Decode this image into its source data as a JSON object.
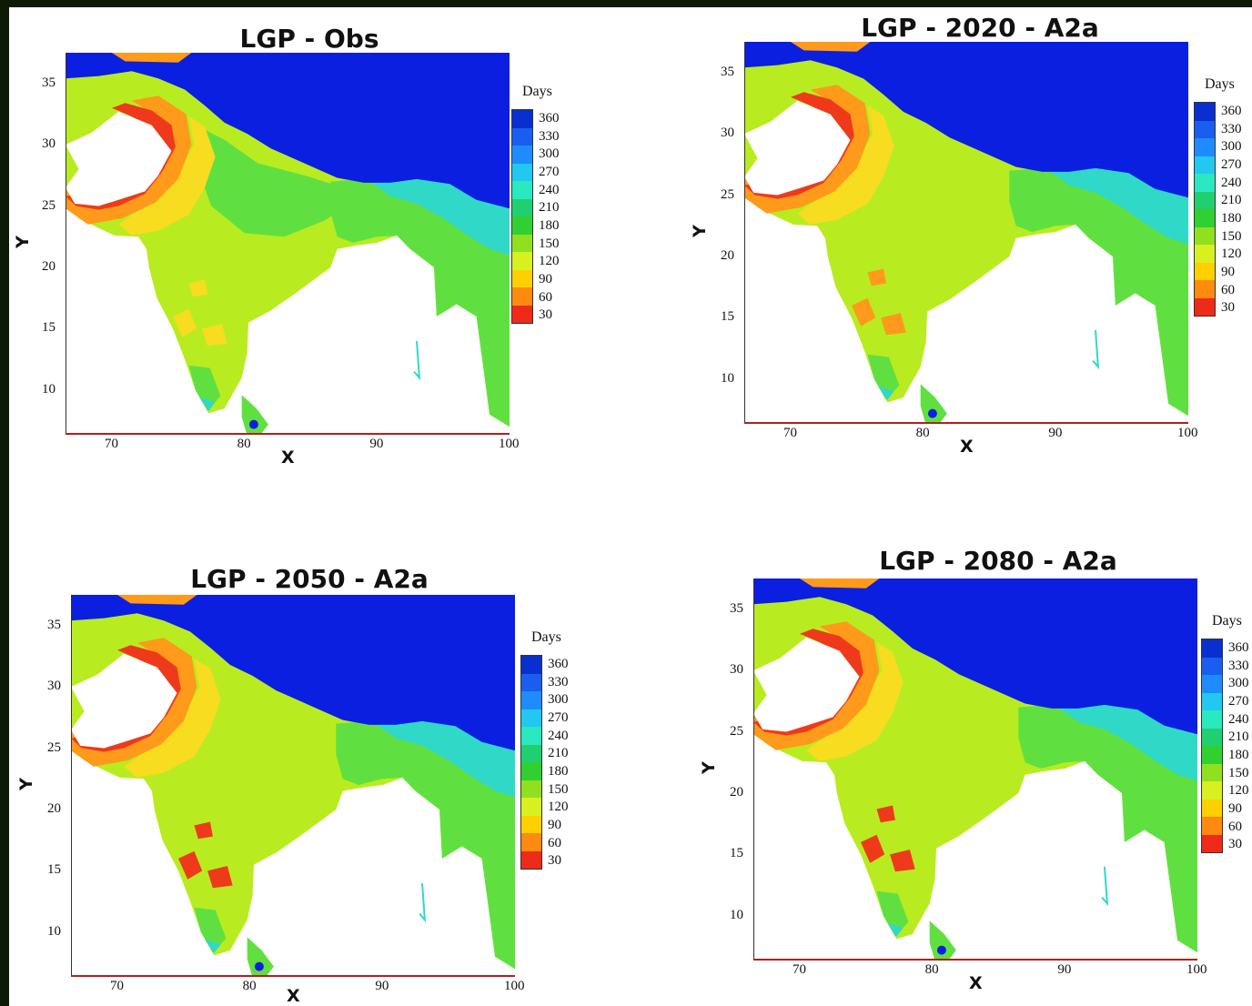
{
  "panels": [
    {
      "title": "LGP - Obs",
      "x_ticks": [
        "70",
        "80",
        "90",
        "100"
      ],
      "y_ticks": [
        "35",
        "30",
        "25",
        "20",
        "15",
        "10"
      ],
      "xlabel": "X",
      "ylabel": "Y",
      "legend_title": "Days"
    },
    {
      "title": "LGP - 2020 - A2a",
      "x_ticks": [
        "70",
        "80",
        "90",
        "100"
      ],
      "y_ticks": [
        "35",
        "30",
        "25",
        "20",
        "15",
        "10"
      ],
      "xlabel": "X",
      "ylabel": "Y",
      "legend_title": "Days"
    },
    {
      "title": "LGP - 2050 - A2a",
      "x_ticks": [
        "70",
        "80",
        "90",
        "100"
      ],
      "y_ticks": [
        "35",
        "30",
        "25",
        "20",
        "15",
        "10"
      ],
      "xlabel": "X",
      "ylabel": "Y",
      "legend_title": "Days"
    },
    {
      "title": "LGP - 2080 - A2a",
      "x_ticks": [
        "70",
        "80",
        "90",
        "100"
      ],
      "y_ticks": [
        "35",
        "30",
        "25",
        "20",
        "15",
        "10"
      ],
      "xlabel": "X",
      "ylabel": "Y",
      "legend_title": "Days"
    }
  ],
  "legend": {
    "levels": [
      "360",
      "330",
      "300",
      "270",
      "240",
      "210",
      "180",
      "150",
      "120",
      "90",
      "60",
      "30"
    ],
    "colors": [
      "#0a2fd0",
      "#1a5ef0",
      "#1e8cff",
      "#22c8f0",
      "#2ae8c0",
      "#20d070",
      "#30d030",
      "#90e020",
      "#d8f020",
      "#ffd000",
      "#ff8a10",
      "#ee2a18"
    ]
  },
  "map_colors": {
    "himalaya": "#0a1fe0",
    "dry": "#ee3a1a",
    "semi_arid": "#ff9a1a",
    "yellow": "#f8dc20",
    "lime": "#b8ec20",
    "green": "#60e040",
    "cyan": "#30d8c8",
    "sky": "#25a8f0",
    "no_data": "#ffffff"
  }
}
